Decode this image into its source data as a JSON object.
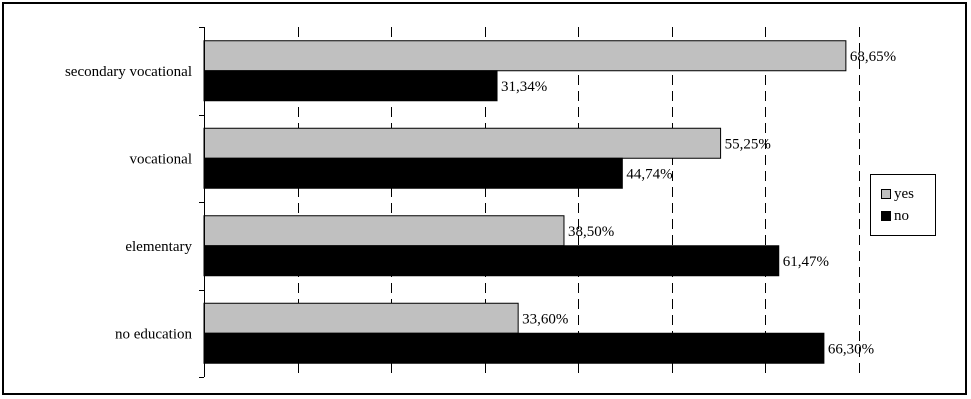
{
  "chart_data": {
    "type": "bar",
    "orientation": "horizontal",
    "categories": [
      "secondary vocational",
      "vocational",
      "elementary",
      "no education"
    ],
    "series": [
      {
        "name": "yes",
        "values": [
          68.65,
          55.25,
          38.5,
          33.6
        ],
        "labels": [
          "68,65%",
          "55,25%",
          "38,50%",
          "33,60%"
        ],
        "color": "#c0c0c0"
      },
      {
        "name": "no",
        "values": [
          31.34,
          44.74,
          61.47,
          66.3
        ],
        "labels": [
          "31,34%",
          "44,74%",
          "61,47%",
          "66,30%"
        ],
        "color": "#000000"
      }
    ],
    "xlim": [
      0,
      70
    ],
    "grid": true,
    "legend_position": "right"
  }
}
